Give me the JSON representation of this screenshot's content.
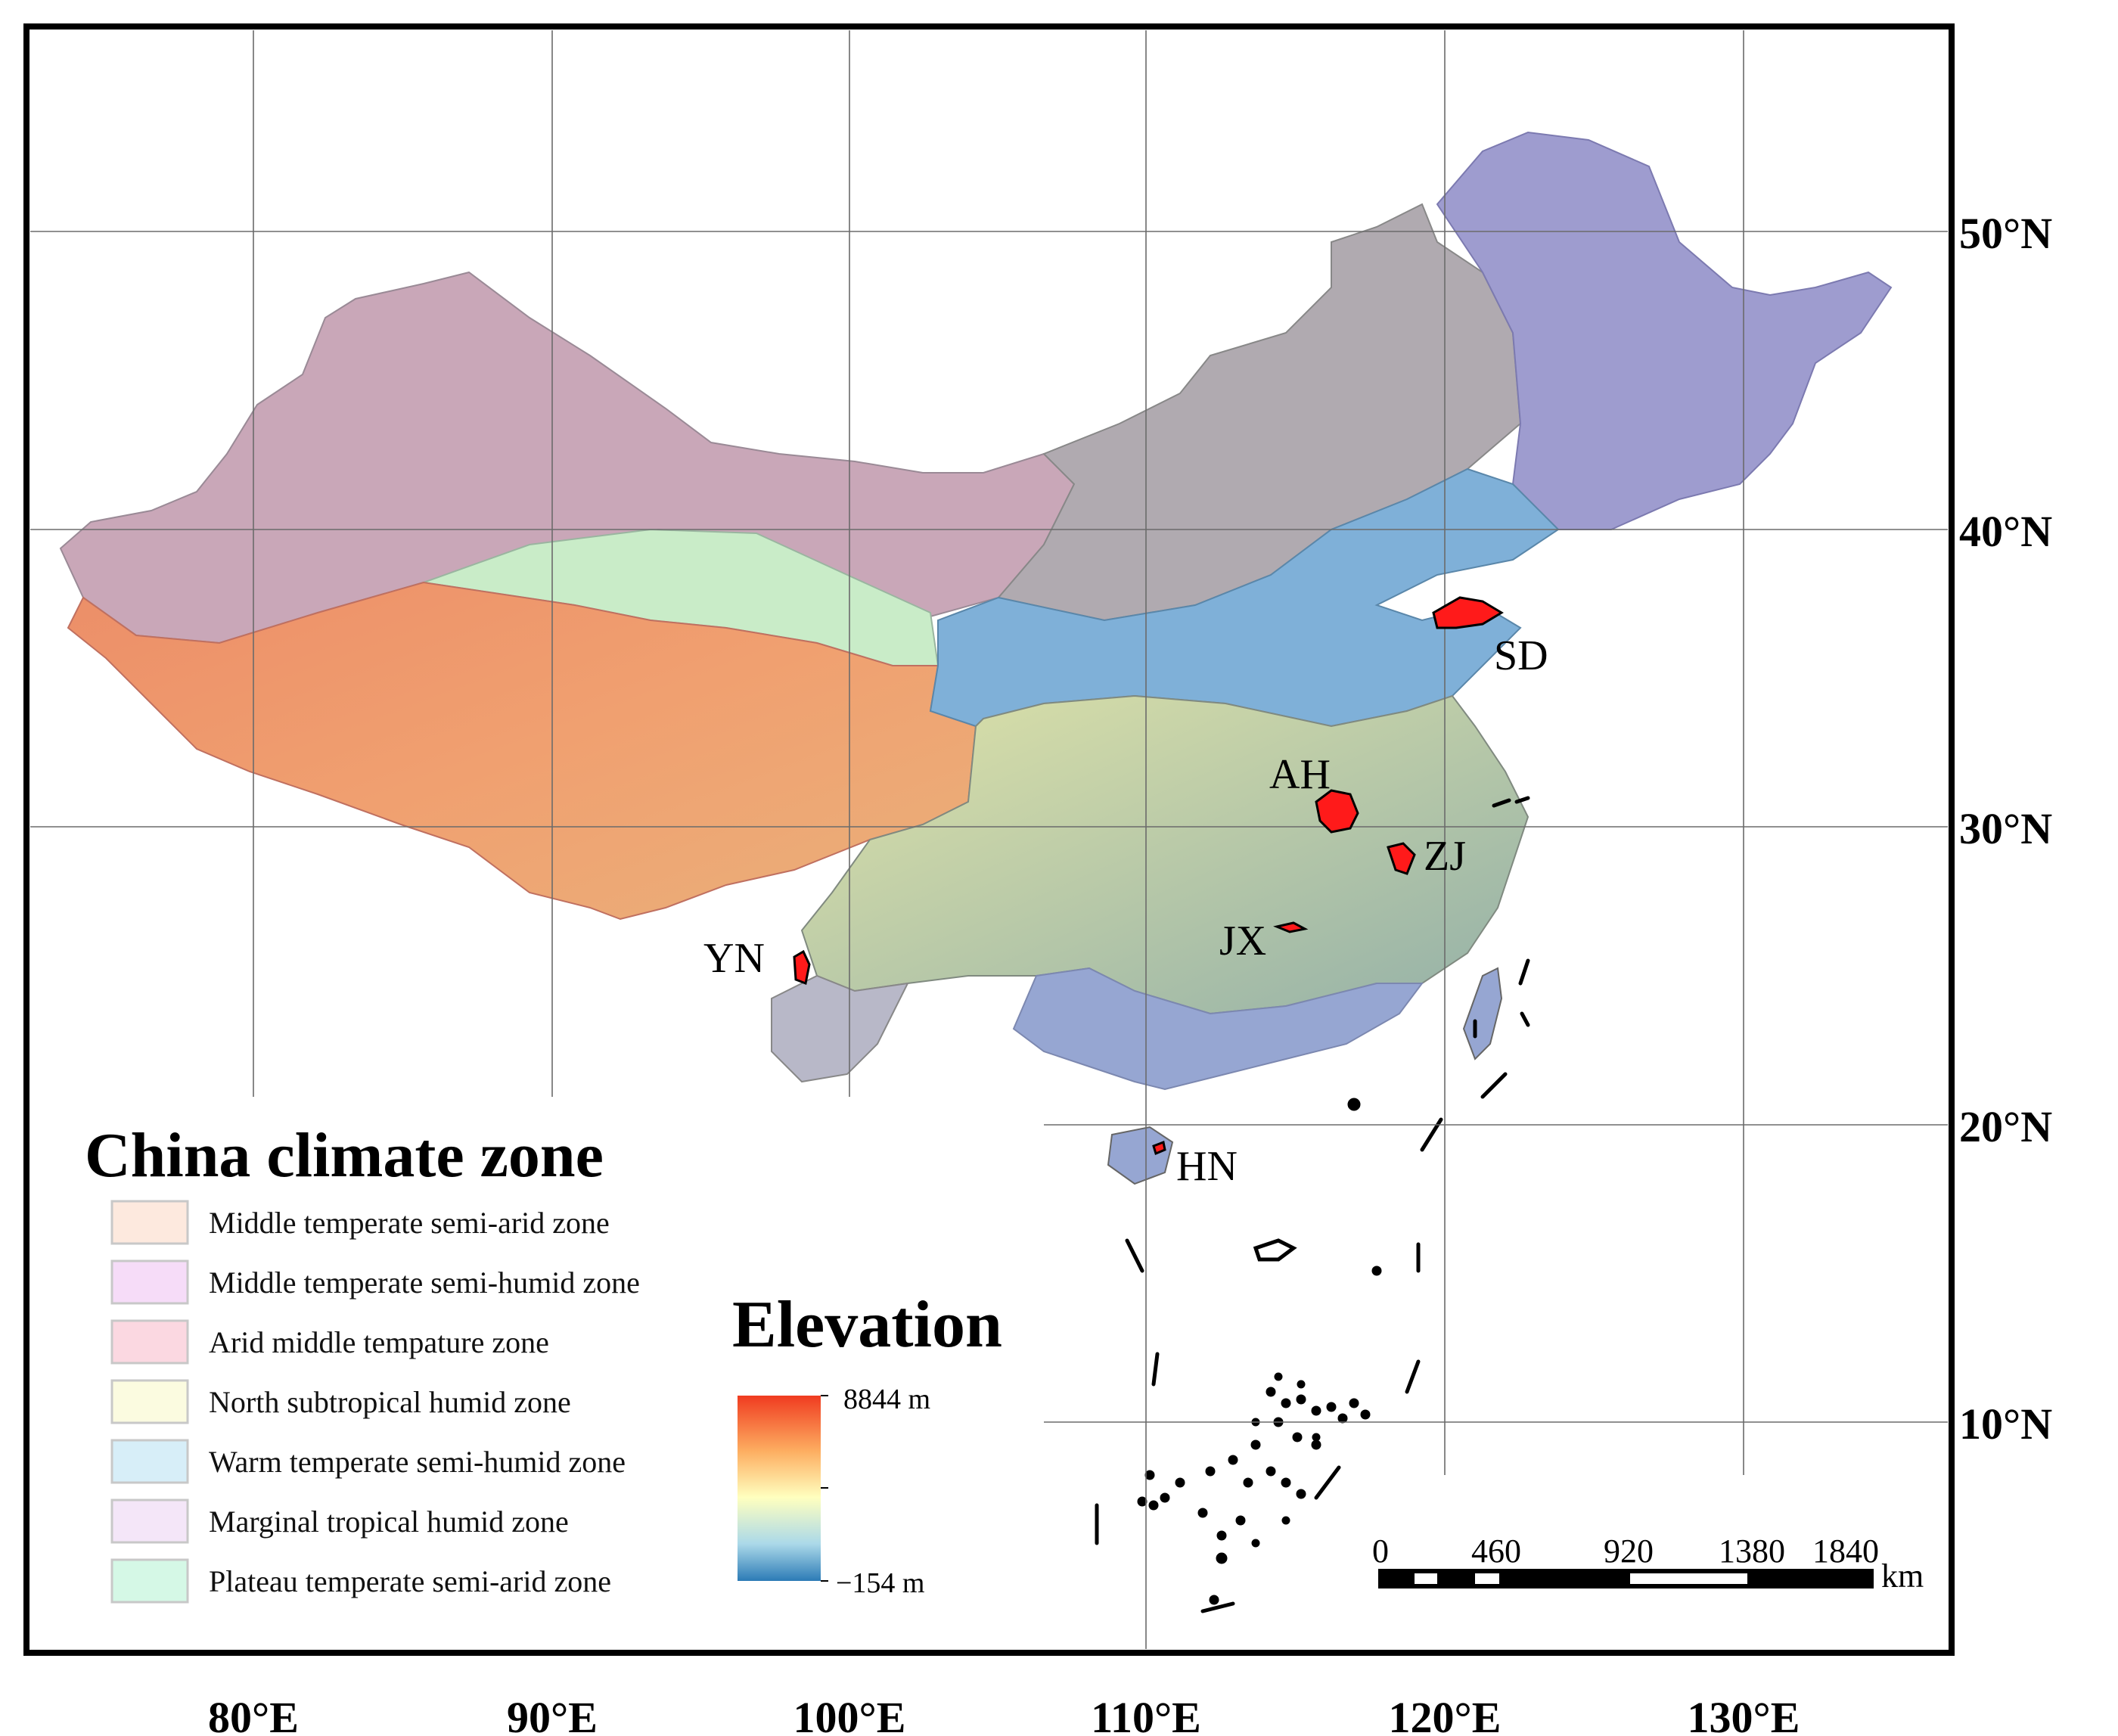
{
  "map": {
    "longitude_labels": [
      "80°E",
      "90°E",
      "100°E",
      "110°E",
      "120°E",
      "130°E"
    ],
    "latitude_labels": [
      "50°N",
      "40°N",
      "30°N",
      "20°N",
      "10°N"
    ],
    "sites": [
      {
        "code": "SD"
      },
      {
        "code": "AH"
      },
      {
        "code": "ZJ"
      },
      {
        "code": "JX"
      },
      {
        "code": "YN"
      },
      {
        "code": "HN"
      }
    ]
  },
  "legend": {
    "title": "China climate zone",
    "items": [
      {
        "label": "Middle temperate semi-arid zone",
        "color": "#fde9de"
      },
      {
        "label": "Middle temperate semi-humid zone",
        "color": "#f6dcf8"
      },
      {
        "label": "Arid middle tempature zone",
        "color": "#fbd8e1"
      },
      {
        "label": "North subtropical humid zone",
        "color": "#fbfbe0"
      },
      {
        "label": "Warm temperate semi-humid zone",
        "color": "#d7eef8"
      },
      {
        "label": "Marginal tropical humid zone",
        "color": "#f4e6f8"
      },
      {
        "label": "Plateau temperate semi-arid zone",
        "color": "#d5f8e6"
      }
    ]
  },
  "elevation": {
    "title": "Elevation",
    "max_label": "8844 m",
    "min_label": "−154 m",
    "colors": [
      "#f03b20",
      "#fdae61",
      "#ffffbf",
      "#abd9e9",
      "#2c7bb6"
    ]
  },
  "scale_bar": {
    "ticks": [
      "0",
      "460",
      "920",
      "1380",
      "1840"
    ],
    "unit": "km"
  }
}
